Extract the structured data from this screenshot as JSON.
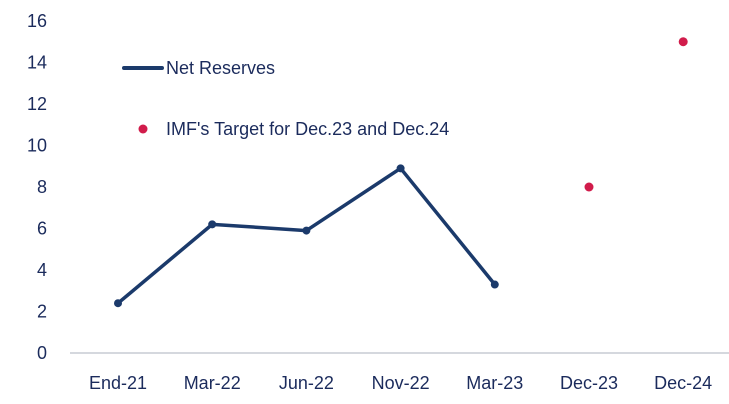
{
  "chart_data": {
    "type": "line",
    "categories": [
      "End-21",
      "Mar-22",
      "Jun-22",
      "Nov-22",
      "Mar-23",
      "Dec-23",
      "Dec-24"
    ],
    "ylim": [
      0,
      16
    ],
    "yticks": [
      0,
      2,
      4,
      6,
      8,
      10,
      12,
      14,
      16
    ],
    "grid": false,
    "legend_position": "top-left",
    "series": [
      {
        "name": "Net Reserves",
        "kind": "line",
        "color": "#1b3a6b",
        "points": [
          {
            "x": "End-21",
            "y": 2.4
          },
          {
            "x": "Mar-22",
            "y": 6.2
          },
          {
            "x": "Jun-22",
            "y": 5.9
          },
          {
            "x": "Nov-22",
            "y": 8.9
          },
          {
            "x": "Mar-23",
            "y": 3.3
          }
        ]
      },
      {
        "name": "IMF's Target for Dec.23 and Dec.24",
        "kind": "scatter",
        "color": "#d11c4b",
        "points": [
          {
            "x": "Dec-23",
            "y": 8.0
          },
          {
            "x": "Dec-24",
            "y": 15.0
          }
        ]
      }
    ]
  }
}
